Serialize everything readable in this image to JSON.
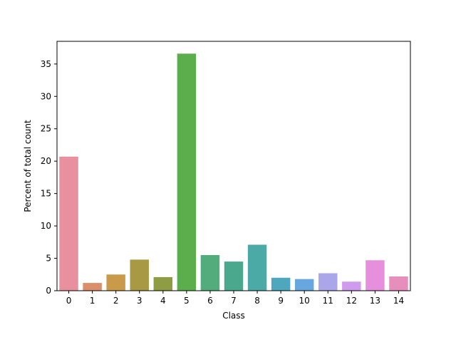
{
  "chart_data": {
    "type": "bar",
    "categories": [
      "0",
      "1",
      "2",
      "3",
      "4",
      "5",
      "6",
      "7",
      "8",
      "9",
      "10",
      "11",
      "12",
      "13",
      "14"
    ],
    "values": [
      20.7,
      1.2,
      2.5,
      4.8,
      2.1,
      36.6,
      5.5,
      4.5,
      7.1,
      2.0,
      1.8,
      2.7,
      1.4,
      4.7,
      2.2
    ],
    "colors": [
      "#e8909e",
      "#dc8d6a",
      "#c99a49",
      "#a89a44",
      "#8e9c43",
      "#5cad4c",
      "#52ac7c",
      "#4aa98c",
      "#4ba9a6",
      "#4ea7bd",
      "#68a6e0",
      "#aba6ea",
      "#cf9bed",
      "#e68fdd",
      "#e78fbc"
    ],
    "xlabel": "Class",
    "ylabel": "Percent of total count",
    "ylim": [
      0,
      38.5
    ],
    "yticks": [
      0,
      5,
      10,
      15,
      20,
      25,
      30,
      35
    ],
    "grid": false,
    "legend": "none"
  }
}
